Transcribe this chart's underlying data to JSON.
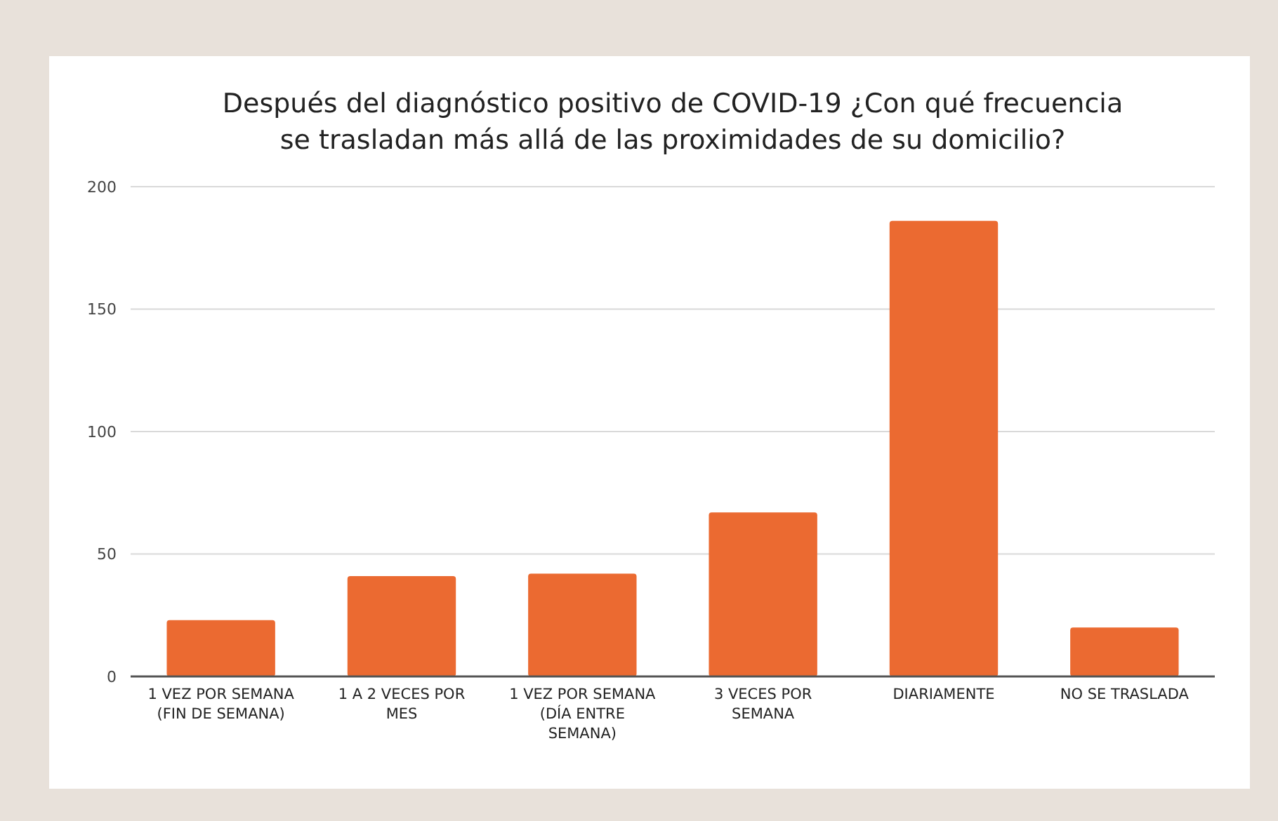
{
  "chart_data": {
    "type": "bar",
    "title": "Después del diagnóstico positivo de COVID-19 ¿Con qué frecuencia se trasladan más allá de las proximidades de su domicilio?",
    "categories": [
      "1 VEZ POR SEMANA (FIN DE SEMANA)",
      "1 A 2 VECES POR MES",
      "1 VEZ POR SEMANA (DÍA ENTRE SEMANA)",
      "3 VECES POR SEMANA",
      "DIARIAMENTE",
      "NO SE TRASLADA"
    ],
    "values": [
      23,
      41,
      42,
      67,
      186,
      20
    ],
    "color": "#eb6a31",
    "ylim": [
      0,
      200
    ],
    "yticks": [
      0,
      50,
      100,
      150,
      200
    ],
    "grid": "y"
  }
}
